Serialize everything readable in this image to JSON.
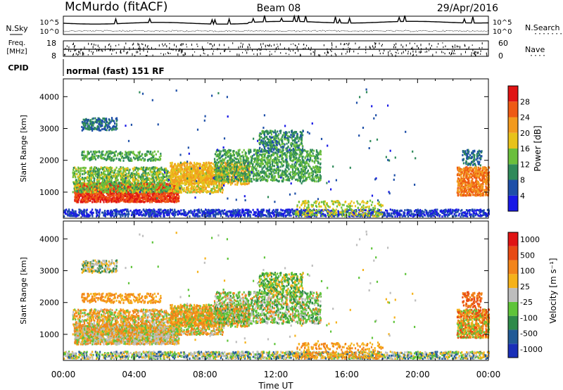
{
  "header": {
    "station": "McMurdo (fitACF)",
    "beam": "Beam 08",
    "date": "29/Apr/2016"
  },
  "top_panels": {
    "nsky_label": "N.Sky",
    "nsky_ticks": [
      "10^5",
      "10^0"
    ],
    "nsearch_label": "N.Search",
    "nsearch_ticks": [
      "10^5",
      "10^0"
    ],
    "freq_label": "Freq.",
    "freq_unit": "[MHz]",
    "freq_ticks": [
      "18",
      "8"
    ],
    "nave_label": "Nave",
    "nave_ticks": [
      "60",
      "0"
    ],
    "cpid_label": "CPID",
    "cpid_text": "normal (fast) 151 RF"
  },
  "colors": {
    "power": [
      "#1919e6",
      "#1e4fa8",
      "#2f8a5a",
      "#6bbf3c",
      "#e8c21a",
      "#f29a1e",
      "#ee5a14",
      "#e01414"
    ],
    "velocity": [
      "#1a2fb8",
      "#215a96",
      "#2e8a4a",
      "#5fc43a",
      "#bdbdbd",
      "#f5b21a",
      "#f2841a",
      "#e84a14",
      "#e01414"
    ]
  },
  "chart_data": [
    {
      "type": "heatmap",
      "title": "",
      "xlabel": "Time UT",
      "ylabel": "Slant Range [km]",
      "x_ticks": [
        "00:00",
        "04:00",
        "08:00",
        "12:00",
        "16:00",
        "20:00",
        "00:00"
      ],
      "xlim_hours": [
        0,
        24
      ],
      "y_ticks": [
        "1000",
        "2000",
        "3000",
        "4000"
      ],
      "ylim_km": [
        180,
        4560
      ],
      "colorbar": {
        "label": "Power [dB]",
        "ticks": [
          "4",
          "8",
          "12",
          "16",
          "20",
          "24",
          "28"
        ],
        "range": [
          0,
          32
        ]
      },
      "description_regions": [
        {
          "t": [
            0.8,
            6.5
          ],
          "r": [
            700,
            1200
          ],
          "level": 28
        },
        {
          "t": [
            0.5,
            9.0
          ],
          "r": [
            1000,
            1700
          ],
          "level": 16
        },
        {
          "t": [
            8.0,
            14.0
          ],
          "r": [
            1300,
            2300
          ],
          "level": 12
        },
        {
          "t": [
            1.0,
            3.0
          ],
          "r": [
            2900,
            3300
          ],
          "level": 8
        },
        {
          "t": [
            22.2,
            24.0
          ],
          "r": [
            900,
            1700
          ],
          "level": 24
        }
      ]
    },
    {
      "type": "heatmap",
      "title": "",
      "xlabel": "Time UT",
      "ylabel": "Slant Range [km]",
      "x_ticks": [
        "00:00",
        "04:00",
        "08:00",
        "12:00",
        "16:00",
        "20:00",
        "00:00"
      ],
      "xlim_hours": [
        0,
        24
      ],
      "y_ticks": [
        "1000",
        "2000",
        "3000",
        "4000"
      ],
      "ylim_km": [
        180,
        4560
      ],
      "colorbar": {
        "label": "Velocity [m s⁻¹]",
        "ticks": [
          "1000",
          "500",
          "100",
          "25",
          "-25",
          "-100",
          "-500",
          "-1000"
        ],
        "range": [
          -1000,
          1000
        ]
      }
    }
  ]
}
